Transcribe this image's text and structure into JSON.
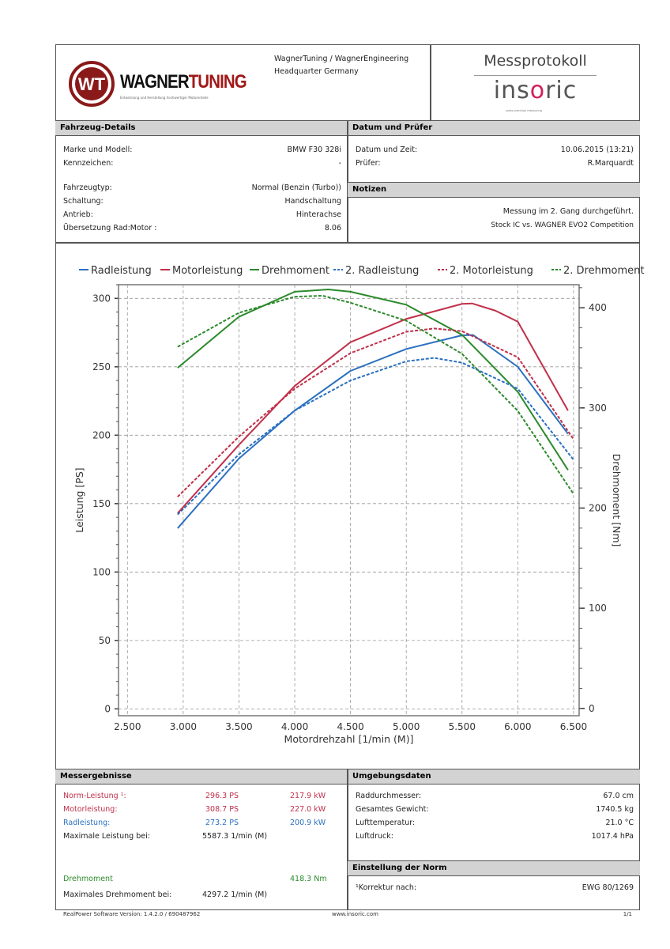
{
  "header": {
    "company_logo": "WAGNERTUNING",
    "company_tagline": "Entwicklung und Herstellung hochwertiger Motorenteile",
    "company_line1": "WagnerTuning / WagnerEngineering",
    "company_line2": "Headquarter Germany",
    "doc_title": "Messprotokoll",
    "brand_logo": "insoric",
    "brand_tagline": "swiss precision measuring"
  },
  "vehicle": {
    "title": "Fahrzeug-Details",
    "rows": [
      {
        "label": "Marke und Modell:",
        "value": "BMW F30 328i"
      },
      {
        "label": "Kennzeichen:",
        "value": "-"
      },
      {
        "label": "Fahrzeugtyp:",
        "value": "Normal (Benzin (Turbo))"
      },
      {
        "label": "Schaltung:",
        "value": "Handschaltung"
      },
      {
        "label": "Antrieb:",
        "value": "Hinterachse"
      },
      {
        "label": "Übersetzung Rad:Motor :",
        "value": "8.06"
      }
    ]
  },
  "date": {
    "title": "Datum und Prüfer",
    "rows": [
      {
        "label": "Datum und Zeit:",
        "value": "10.06.2015 (13:21)"
      },
      {
        "label": "Prüfer:",
        "value": "R.Marquardt"
      }
    ]
  },
  "notes": {
    "title": "Notizen",
    "line1": "Messung im 2. Gang durchgeführt.",
    "line2": "Stock IC vs. WAGNER EVO2 Competition"
  },
  "results": {
    "title": "Messergebnisse",
    "norm": {
      "label": "Norm-Leistung ¹:",
      "ps": "296.3 PS",
      "kw": "217.9 kW"
    },
    "motor": {
      "label": "Motorleistung:",
      "ps": "308.7 PS",
      "kw": "227.0 kW"
    },
    "rad": {
      "label": "Radleistung:",
      "ps": "273.2 PS",
      "kw": "200.9 kW"
    },
    "max_power": {
      "label": "Maximale Leistung bei:",
      "value": "5587.3 1/min (M)"
    },
    "torque": {
      "label": "Drehmoment",
      "value": "418.3 Nm"
    },
    "max_torque": {
      "label": "Maximales Drehmoment bei:",
      "value": "4297.2 1/min (M)"
    }
  },
  "environment": {
    "title": "Umgebungsdaten",
    "rows": [
      {
        "label": "Raddurchmesser:",
        "value": "67.0 cm"
      },
      {
        "label": "Gesamtes Gewicht:",
        "value": "1740.5 kg"
      },
      {
        "label": "Lufttemperatur:",
        "value": "21.0 °C"
      },
      {
        "label": "Luftdruck:",
        "value": "1017.4 hPa"
      }
    ]
  },
  "norm": {
    "title": "Einstellung der Norm",
    "label": "¹Korrektur nach:",
    "value": "EWG 80/1269"
  },
  "footer": {
    "software": "RealPower Software Version: 1.4.2.0 / 690487962",
    "url": "www.insoric.com",
    "page": "1/1"
  },
  "chart_data": {
    "type": "line",
    "xlabel": "Motordrehzahl [1/min (M)]",
    "ylabel": "Leistung [PS]",
    "y2label": "Drehmoment [Nm]",
    "xlim": [
      2420,
      6550
    ],
    "ylim": [
      -5,
      310
    ],
    "y2lim": [
      -7.3,
      423
    ],
    "xticks": [
      2500,
      3000,
      3500,
      4000,
      4500,
      5000,
      5500,
      6000,
      6500
    ],
    "xtick_labels": [
      "2.500",
      "3.000",
      "3.500",
      "4.000",
      "4.500",
      "5.000",
      "5.500",
      "6.000",
      "6.500"
    ],
    "yticks": [
      0,
      50,
      100,
      150,
      200,
      250,
      300
    ],
    "y2ticks": [
      0,
      100,
      200,
      300,
      400
    ],
    "grid": true,
    "legend_position": "top",
    "series": [
      {
        "name": "Radleistung",
        "axis": "left",
        "color": "#2a70c0",
        "dashed": false,
        "x": [
          2950,
          3500,
          4000,
          4500,
          5000,
          5500,
          5600,
          6000,
          6450
        ],
        "y": [
          132,
          183,
          218,
          247,
          263,
          273,
          273.2,
          250,
          201
        ]
      },
      {
        "name": "Motorleistung",
        "axis": "left",
        "color": "#c0304a",
        "dashed": false,
        "x": [
          2950,
          3500,
          4000,
          4500,
          5000,
          5500,
          5590,
          5800,
          6000,
          6450
        ],
        "y": [
          143,
          193,
          236,
          268,
          285,
          296,
          296.3,
          291,
          283,
          218
        ]
      },
      {
        "name": "Drehmoment",
        "axis": "right",
        "color": "#2b8a2b",
        "dashed": false,
        "x": [
          2950,
          3500,
          4000,
          4300,
          4500,
          5000,
          5500,
          6000,
          6450
        ],
        "y": [
          340,
          391,
          416,
          418.3,
          416,
          403,
          373,
          316,
          238
        ]
      },
      {
        "name": "2. Radleistung",
        "axis": "left",
        "color": "#2a70c0",
        "dashed": true,
        "x": [
          2950,
          3500,
          4000,
          4500,
          5000,
          5250,
          5500,
          6000,
          6500
        ],
        "y": [
          142,
          186,
          218,
          240,
          254,
          256.5,
          253,
          234,
          182
        ]
      },
      {
        "name": "2. Motorleistung",
        "axis": "left",
        "color": "#c0304a",
        "dashed": true,
        "x": [
          2950,
          3500,
          4000,
          4500,
          5000,
          5250,
          5500,
          6000,
          6500
        ],
        "y": [
          155,
          199,
          234,
          260,
          275.6,
          278,
          276,
          257,
          197
        ]
      },
      {
        "name": "2. Drehmoment",
        "axis": "right",
        "color": "#2b8a2b",
        "dashed": true,
        "x": [
          2950,
          3500,
          4000,
          4250,
          4500,
          5000,
          5500,
          6000,
          6500
        ],
        "y": [
          361,
          395,
          411,
          412,
          405,
          387,
          354,
          297,
          214
        ]
      }
    ]
  }
}
